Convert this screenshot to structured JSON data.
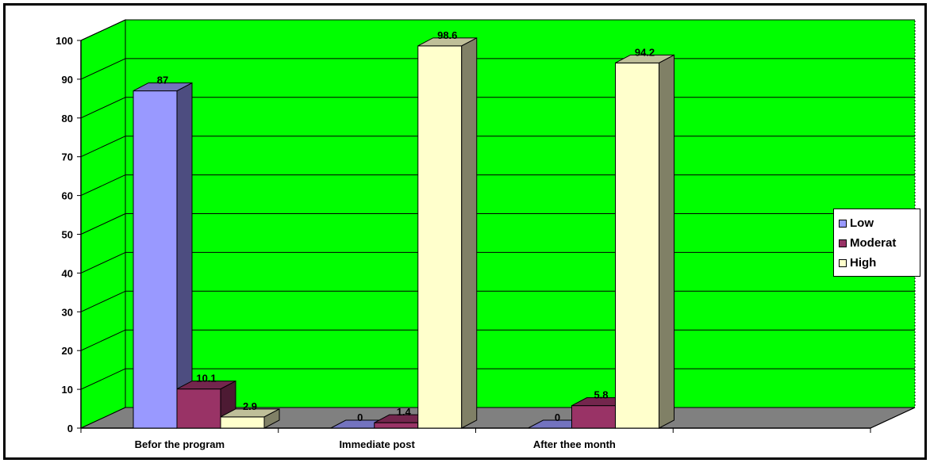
{
  "chart_data": {
    "type": "bar",
    "categories": [
      "Befor the program",
      "Immediate post",
      "After thee month"
    ],
    "series": [
      {
        "name": "Low",
        "values": [
          87,
          0,
          0
        ],
        "color": "#9999ff",
        "side_color": "#4d4d80",
        "top_color": "#7373bf"
      },
      {
        "name": "Moderat",
        "values": [
          10.1,
          1.4,
          5.8
        ],
        "color": "#993366",
        "side_color": "#4d1a33",
        "top_color": "#73264d"
      },
      {
        "name": "High",
        "values": [
          2.9,
          98.6,
          94.2
        ],
        "color": "#ffffcc",
        "side_color": "#808066",
        "top_color": "#bfbf99"
      }
    ],
    "data_labels": [
      [
        "87",
        "0",
        "0"
      ],
      [
        "10.1",
        "1.4",
        "5.8"
      ],
      [
        "2.9",
        "98.6",
        "94.2"
      ]
    ],
    "y_ticks": [
      "0",
      "10",
      "20",
      "30",
      "40",
      "50",
      "60",
      "70",
      "80",
      "90",
      "100"
    ],
    "ylim": [
      0,
      100
    ],
    "grid": true,
    "legend_position": "right",
    "wall_color": "#00ff00",
    "floor_color": "#808080"
  }
}
